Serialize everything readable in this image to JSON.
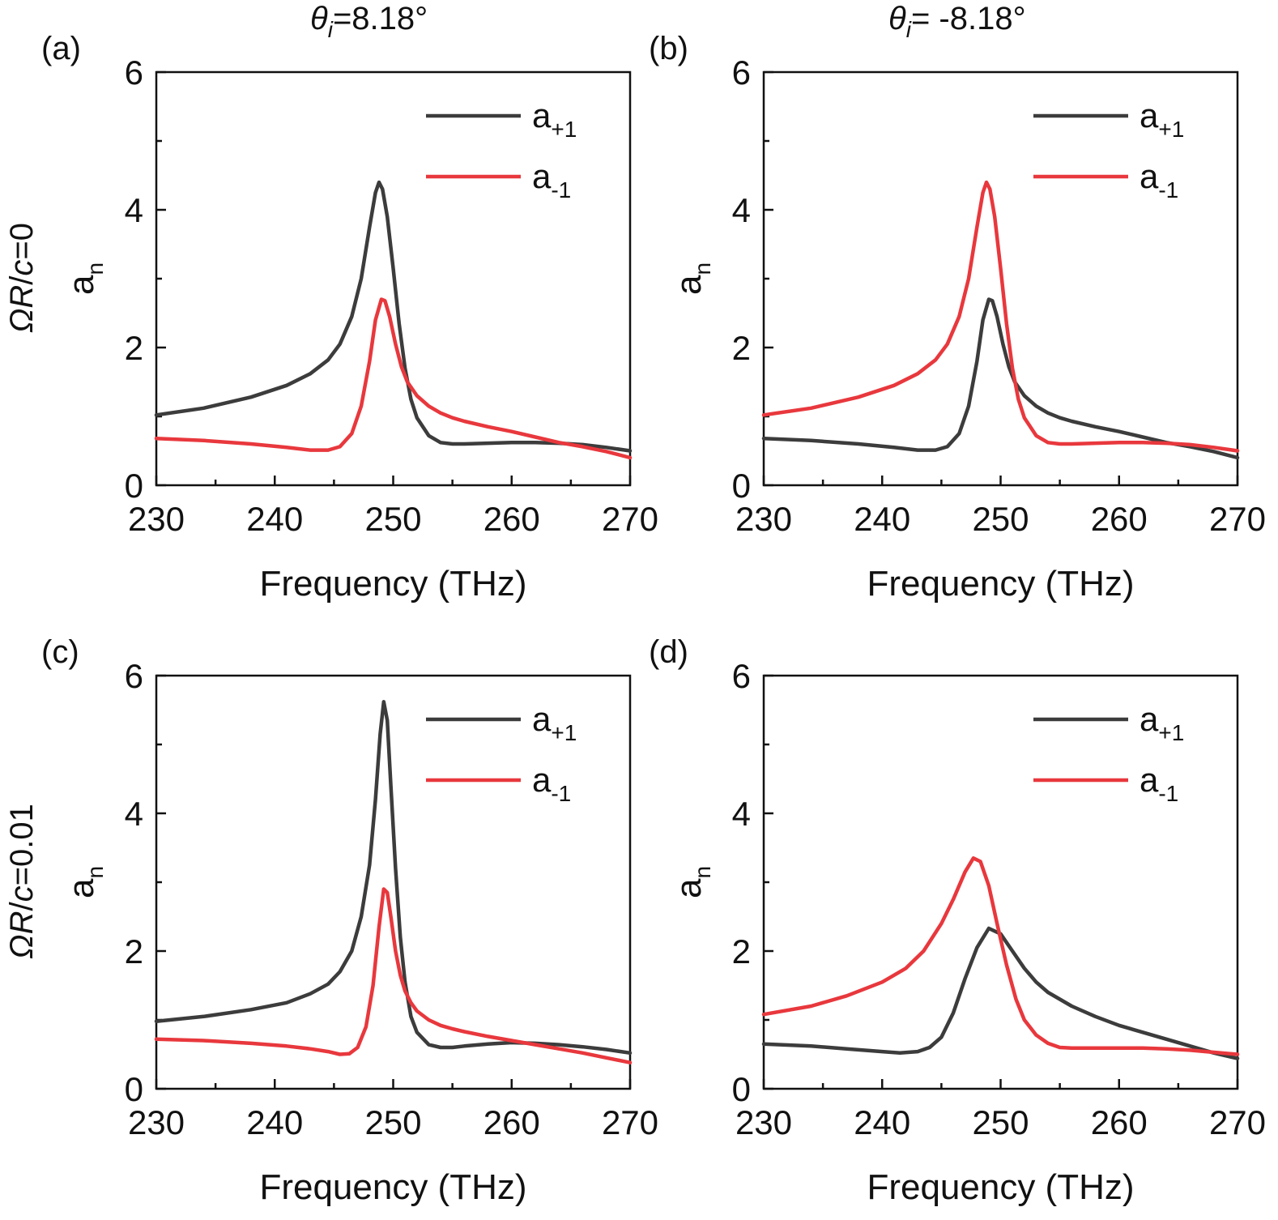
{
  "figure": {
    "column_titles": [
      {
        "symbol": "θ",
        "subscript": "i",
        "value": "=8.18°"
      },
      {
        "symbol": "θ",
        "subscript": "i",
        "value": "= -8.18°"
      }
    ],
    "row_titles": [
      {
        "pre": "Ω",
        "italic_r": "R",
        "slash": "/",
        "italic_c": "c",
        "value": "=0"
      },
      {
        "pre": "Ω",
        "italic_r": "R",
        "slash": "/",
        "italic_c": "c",
        "value": "=0.01"
      }
    ],
    "colors": {
      "a_plus": "#3c3c3c",
      "a_minus": "#e8383d"
    }
  },
  "chart_data": [
    {
      "type": "line",
      "panel_label": "(a)",
      "xlabel": "Frequency (THz)",
      "ylabel": {
        "base": "a",
        "sub": "n"
      },
      "xlim": [
        230,
        270
      ],
      "ylim": [
        0,
        6
      ],
      "xticks": [
        230,
        240,
        250,
        260,
        270
      ],
      "yticks": [
        0,
        2,
        4,
        6
      ],
      "legend_position": "top-right",
      "grid": false,
      "series": [
        {
          "name": "a+1",
          "legend_base": "a",
          "legend_sub": "+1",
          "color": "#3c3c3c",
          "x": [
            230,
            234,
            238,
            241,
            243,
            244.5,
            245.5,
            246.5,
            247.3,
            248,
            248.5,
            248.8,
            249.1,
            249.5,
            250,
            250.5,
            251,
            251.5,
            252,
            253,
            254,
            255,
            256,
            258,
            260,
            262,
            264,
            266,
            268,
            270
          ],
          "y": [
            1.02,
            1.12,
            1.28,
            1.45,
            1.62,
            1.82,
            2.05,
            2.45,
            3.0,
            3.75,
            4.25,
            4.4,
            4.3,
            3.9,
            3.15,
            2.35,
            1.7,
            1.25,
            0.98,
            0.72,
            0.62,
            0.6,
            0.6,
            0.61,
            0.62,
            0.62,
            0.61,
            0.59,
            0.55,
            0.5
          ]
        },
        {
          "name": "a-1",
          "legend_base": "a",
          "legend_sub": "-1",
          "color": "#e8383d",
          "x": [
            230,
            234,
            238,
            241,
            243,
            244.5,
            245.5,
            246.5,
            247.3,
            248,
            248.5,
            249,
            249.3,
            249.7,
            250.2,
            250.7,
            251.2,
            252,
            253,
            254,
            255,
            256,
            258,
            260,
            262,
            264,
            266,
            268,
            270
          ],
          "y": [
            0.68,
            0.65,
            0.6,
            0.55,
            0.51,
            0.51,
            0.56,
            0.75,
            1.15,
            1.8,
            2.4,
            2.7,
            2.68,
            2.45,
            2.05,
            1.72,
            1.5,
            1.3,
            1.15,
            1.05,
            0.98,
            0.93,
            0.85,
            0.78,
            0.7,
            0.62,
            0.56,
            0.49,
            0.4
          ]
        }
      ]
    },
    {
      "type": "line",
      "panel_label": "(b)",
      "xlabel": "Frequency (THz)",
      "ylabel": {
        "base": "a",
        "sub": "n"
      },
      "xlim": [
        230,
        270
      ],
      "ylim": [
        0,
        6
      ],
      "xticks": [
        230,
        240,
        250,
        260,
        270
      ],
      "yticks": [
        0,
        2,
        4,
        6
      ],
      "legend_position": "top-right",
      "grid": false,
      "series": [
        {
          "name": "a+1",
          "legend_base": "a",
          "legend_sub": "+1",
          "color": "#3c3c3c",
          "x": [
            230,
            234,
            238,
            241,
            243,
            244.5,
            245.5,
            246.5,
            247.3,
            248,
            248.5,
            249,
            249.3,
            249.7,
            250.2,
            250.7,
            251.2,
            252,
            253,
            254,
            255,
            256,
            258,
            260,
            262,
            264,
            266,
            268,
            270
          ],
          "y": [
            0.68,
            0.65,
            0.6,
            0.55,
            0.51,
            0.51,
            0.56,
            0.75,
            1.15,
            1.8,
            2.4,
            2.7,
            2.68,
            2.45,
            2.05,
            1.72,
            1.5,
            1.3,
            1.15,
            1.05,
            0.98,
            0.93,
            0.85,
            0.78,
            0.7,
            0.62,
            0.56,
            0.49,
            0.4
          ]
        },
        {
          "name": "a-1",
          "legend_base": "a",
          "legend_sub": "-1",
          "color": "#e8383d",
          "x": [
            230,
            234,
            238,
            241,
            243,
            244.5,
            245.5,
            246.5,
            247.3,
            248,
            248.5,
            248.8,
            249.1,
            249.5,
            250,
            250.5,
            251,
            251.5,
            252,
            253,
            254,
            255,
            256,
            258,
            260,
            262,
            264,
            266,
            268,
            270
          ],
          "y": [
            1.02,
            1.12,
            1.28,
            1.45,
            1.62,
            1.82,
            2.05,
            2.45,
            3.0,
            3.75,
            4.25,
            4.4,
            4.3,
            3.9,
            3.15,
            2.35,
            1.7,
            1.25,
            0.98,
            0.72,
            0.62,
            0.6,
            0.6,
            0.61,
            0.62,
            0.62,
            0.61,
            0.59,
            0.55,
            0.5
          ]
        }
      ]
    },
    {
      "type": "line",
      "panel_label": "(c)",
      "xlabel": "Frequency (THz)",
      "ylabel": {
        "base": "a",
        "sub": "n"
      },
      "xlim": [
        230,
        270
      ],
      "ylim": [
        0,
        6
      ],
      "xticks": [
        230,
        240,
        250,
        260,
        270
      ],
      "yticks": [
        0,
        2,
        4,
        6
      ],
      "legend_position": "top-right",
      "grid": false,
      "series": [
        {
          "name": "a+1",
          "legend_base": "a",
          "legend_sub": "+1",
          "color": "#3c3c3c",
          "x": [
            230,
            234,
            238,
            241,
            243,
            244.5,
            245.5,
            246.5,
            247.3,
            248,
            248.5,
            248.9,
            249.2,
            249.5,
            249.8,
            250.2,
            250.6,
            251,
            251.5,
            252,
            253,
            254,
            255,
            256,
            258,
            260,
            262,
            264,
            266,
            268,
            270
          ],
          "y": [
            0.98,
            1.05,
            1.15,
            1.25,
            1.38,
            1.52,
            1.7,
            2.0,
            2.5,
            3.25,
            4.2,
            5.15,
            5.62,
            5.35,
            4.4,
            3.2,
            2.2,
            1.55,
            1.05,
            0.82,
            0.64,
            0.6,
            0.6,
            0.62,
            0.65,
            0.67,
            0.66,
            0.64,
            0.61,
            0.57,
            0.52
          ]
        },
        {
          "name": "a-1",
          "legend_base": "a",
          "legend_sub": "-1",
          "color": "#e8383d",
          "x": [
            230,
            234,
            238,
            241,
            243,
            244.5,
            245.5,
            246.3,
            247,
            247.7,
            248.3,
            248.8,
            249.2,
            249.5,
            249.8,
            250.2,
            250.6,
            251,
            251.5,
            252,
            253,
            254,
            255,
            256,
            258,
            260,
            262,
            264,
            266,
            268,
            270
          ],
          "y": [
            0.72,
            0.7,
            0.66,
            0.62,
            0.58,
            0.54,
            0.5,
            0.51,
            0.6,
            0.9,
            1.5,
            2.35,
            2.9,
            2.85,
            2.5,
            2.0,
            1.65,
            1.42,
            1.25,
            1.13,
            1.0,
            0.92,
            0.87,
            0.83,
            0.76,
            0.7,
            0.64,
            0.58,
            0.52,
            0.45,
            0.38
          ]
        }
      ]
    },
    {
      "type": "line",
      "panel_label": "(d)",
      "xlabel": "Frequency (THz)",
      "ylabel": {
        "base": "a",
        "sub": "n"
      },
      "xlim": [
        230,
        270
      ],
      "ylim": [
        0,
        6
      ],
      "xticks": [
        230,
        240,
        250,
        260,
        270
      ],
      "yticks": [
        0,
        2,
        4,
        6
      ],
      "legend_position": "top-right",
      "grid": false,
      "series": [
        {
          "name": "a+1",
          "legend_base": "a",
          "legend_sub": "+1",
          "color": "#3c3c3c",
          "x": [
            230,
            234,
            237,
            240,
            241.5,
            243,
            244,
            245,
            246,
            247,
            248,
            249,
            250,
            251,
            252,
            253,
            254,
            256,
            258,
            260,
            262,
            264,
            266,
            268,
            270
          ],
          "y": [
            0.65,
            0.62,
            0.58,
            0.54,
            0.52,
            0.54,
            0.6,
            0.75,
            1.1,
            1.6,
            2.05,
            2.33,
            2.25,
            2.0,
            1.75,
            1.55,
            1.4,
            1.2,
            1.05,
            0.92,
            0.82,
            0.72,
            0.62,
            0.52,
            0.44
          ]
        },
        {
          "name": "a-1",
          "legend_base": "a",
          "legend_sub": "-1",
          "color": "#e8383d",
          "x": [
            230,
            234,
            237,
            240,
            242,
            243.5,
            245,
            246,
            247,
            247.7,
            248.3,
            249,
            249.7,
            250.5,
            251.3,
            252,
            253,
            254,
            255,
            256,
            258,
            260,
            262,
            264,
            266,
            268,
            270
          ],
          "y": [
            1.08,
            1.2,
            1.35,
            1.55,
            1.75,
            2.0,
            2.4,
            2.75,
            3.15,
            3.35,
            3.3,
            2.95,
            2.4,
            1.8,
            1.3,
            1.0,
            0.78,
            0.66,
            0.6,
            0.59,
            0.59,
            0.59,
            0.59,
            0.58,
            0.56,
            0.53,
            0.5
          ]
        }
      ]
    }
  ]
}
